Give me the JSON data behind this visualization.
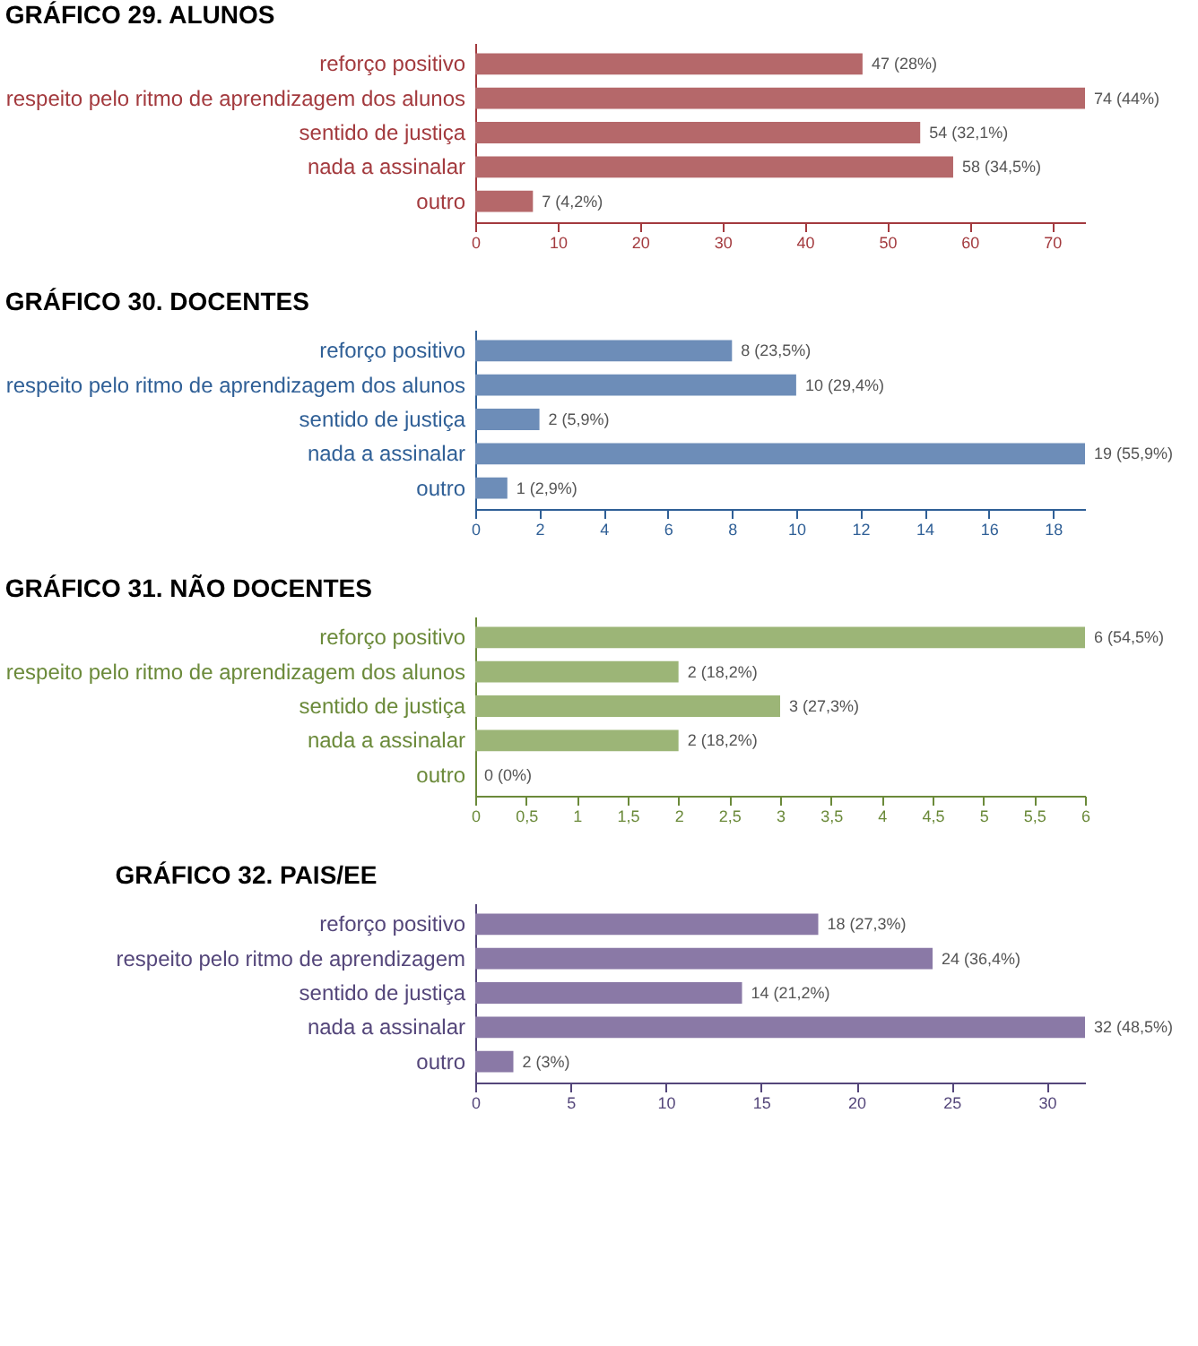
{
  "chart_data": [
    {
      "type": "bar",
      "orientation": "horizontal",
      "title": "GRÁFICO 29. ALUNOS",
      "categories": [
        "reforço positivo",
        "respeito pelo ritmo de aprendizagem dos alunos",
        "sentido de justiça",
        "nada a assinalar",
        "outro"
      ],
      "values": [
        47,
        74,
        54,
        58,
        7
      ],
      "color": "#b5686a",
      "value_labels": [
        "47 (28%)",
        "74 (44%)",
        "54 (32,1%)",
        "58 (34,5%)",
        "7 (4,2%)"
      ],
      "xlim": [
        0,
        74
      ],
      "xticks": [
        0,
        10,
        20,
        30,
        40,
        50,
        60,
        70
      ],
      "grid": false
    },
    {
      "type": "bar",
      "orientation": "horizontal",
      "title": "GRÁFICO 30. DOCENTES",
      "categories": [
        "reforço positivo",
        "respeito pelo ritmo de aprendizagem dos alunos",
        "sentido de justiça",
        "nada a assinalar",
        "outro"
      ],
      "values": [
        8,
        10,
        2,
        19,
        1
      ],
      "color": "#6d8db8",
      "value_labels": [
        "8 (23,5%)",
        "10 (29,4%)",
        "2 (5,9%)",
        "19 (55,9%)",
        "1 (2,9%)"
      ],
      "xlim": [
        0,
        19
      ],
      "xticks": [
        0,
        2,
        4,
        6,
        8,
        10,
        12,
        14,
        16,
        18
      ],
      "grid": false
    },
    {
      "type": "bar",
      "orientation": "horizontal",
      "title": "GRÁFICO 31. NÃO DOCENTES",
      "categories": [
        "reforço positivo",
        "respeito pelo ritmo de aprendizagem dos alunos",
        "sentido de justiça",
        "nada a assinalar",
        "outro"
      ],
      "values": [
        6,
        2,
        3,
        2,
        0
      ],
      "color": "#9cb577",
      "value_labels": [
        "6 (54,5%)",
        "2 (18,2%)",
        "3 (27,3%)",
        "2 (18,2%)",
        "0 (0%)"
      ],
      "xlim": [
        0,
        6
      ],
      "xticks": [
        0,
        {
          "value": 0.5,
          "label": "0,5"
        },
        1,
        {
          "value": 1.5,
          "label": "1,5"
        },
        2,
        {
          "value": 2.5,
          "label": "2,5"
        },
        3,
        {
          "value": 3.5,
          "label": "3,5"
        },
        4,
        {
          "value": 4.5,
          "label": "4,5"
        },
        5,
        {
          "value": 5.5,
          "label": "5,5"
        },
        6
      ],
      "grid": false
    },
    {
      "type": "bar",
      "orientation": "horizontal",
      "title": "GRÁFICO 32. PAIS/EE",
      "categories": [
        "reforço positivo",
        "respeito pelo ritmo de aprendizagem",
        "sentido de justiça",
        "nada a assinalar",
        "outro"
      ],
      "values": [
        18,
        24,
        14,
        32,
        2
      ],
      "color": "#8a79a6",
      "value_labels": [
        "18 (27,3%)",
        "24 (36,4%)",
        "14 (21,2%)",
        "32 (48,5%)",
        "2 (3%)"
      ],
      "xlim": [
        0,
        32
      ],
      "xticks": [
        0,
        5,
        10,
        15,
        20,
        25,
        30
      ],
      "grid": false
    }
  ]
}
